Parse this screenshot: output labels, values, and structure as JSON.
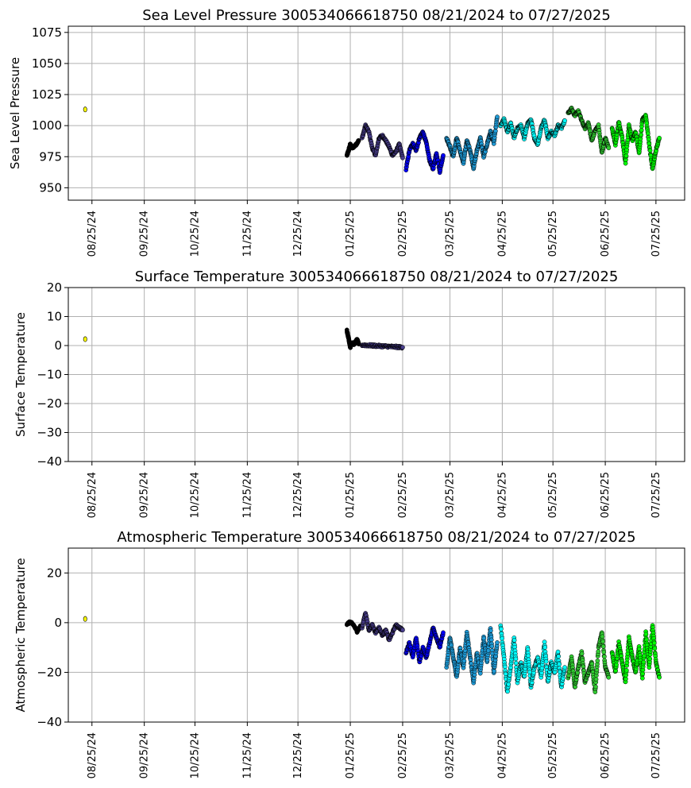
{
  "chart_data": [
    {
      "type": "scatter",
      "title": "Sea Level Pressure 300534066618750  08/21/2024 to 07/27/2025",
      "xlabel": "",
      "ylabel": "Sea Level Pressure",
      "ylim": [
        940,
        1080
      ],
      "yticks": [
        950,
        975,
        1000,
        1025,
        1050,
        1075
      ],
      "xlim": [
        "2024-08-11",
        "2025-08-11"
      ],
      "xticks": [
        "2024-08-25",
        "2024-09-25",
        "2024-10-25",
        "2024-11-25",
        "2024-12-25",
        "2025-01-25",
        "2025-02-25",
        "2025-03-25",
        "2025-04-25",
        "2025-05-25",
        "2025-06-25",
        "2025-07-25"
      ],
      "xtick_labels": [
        "08/25/24",
        "09/25/24",
        "10/25/24",
        "11/25/24",
        "12/25/24",
        "01/25/25",
        "02/25/25",
        "03/25/25",
        "04/25/25",
        "05/25/25",
        "06/25/25",
        "07/25/25"
      ],
      "grid": true,
      "series": [
        {
          "color": "#ffff00",
          "x": [
            "2024-08-21"
          ],
          "y": [
            1013
          ]
        },
        {
          "color": "#000000",
          "x": [
            "2025-01-23",
            "2025-01-24",
            "2025-01-25",
            "2025-01-26",
            "2025-01-28",
            "2025-01-30"
          ],
          "y": [
            976,
            980,
            985,
            982,
            984,
            988
          ]
        },
        {
          "color": "#483d8b",
          "x": [
            "2025-02-01",
            "2025-02-03",
            "2025-02-05",
            "2025-02-07",
            "2025-02-09",
            "2025-02-11",
            "2025-02-13",
            "2025-02-15",
            "2025-02-17",
            "2025-02-19",
            "2025-02-21",
            "2025-02-23",
            "2025-02-25"
          ],
          "y": [
            990,
            1000,
            995,
            982,
            976,
            990,
            992,
            988,
            983,
            976,
            979,
            985,
            974
          ]
        },
        {
          "color": "#0000ff",
          "x": [
            "2025-02-27",
            "2025-03-01",
            "2025-03-03",
            "2025-03-05",
            "2025-03-07",
            "2025-03-09",
            "2025-03-11",
            "2025-03-13",
            "2025-03-15",
            "2025-03-17",
            "2025-03-19",
            "2025-03-21"
          ],
          "y": [
            965,
            980,
            986,
            980,
            990,
            995,
            986,
            972,
            965,
            978,
            963,
            976
          ]
        },
        {
          "color": "#1e9ad6",
          "x": [
            "2025-03-23",
            "2025-03-25",
            "2025-03-27",
            "2025-03-29",
            "2025-03-31",
            "2025-04-02",
            "2025-04-04",
            "2025-04-06",
            "2025-04-08",
            "2025-04-10",
            "2025-04-12",
            "2025-04-14",
            "2025-04-16",
            "2025-04-18",
            "2025-04-20",
            "2025-04-22"
          ],
          "y": [
            990,
            983,
            975,
            990,
            980,
            970,
            988,
            980,
            966,
            980,
            990,
            975,
            985,
            995,
            986,
            1007
          ]
        },
        {
          "color": "#00ffff",
          "x": [
            "2025-04-24",
            "2025-04-26",
            "2025-04-28",
            "2025-04-30",
            "2025-05-02",
            "2025-05-04",
            "2025-05-06",
            "2025-05-08",
            "2025-05-10",
            "2025-05-12",
            "2025-05-14",
            "2025-05-16",
            "2025-05-18",
            "2025-05-20",
            "2025-05-22",
            "2025-05-24",
            "2025-05-26",
            "2025-05-28",
            "2025-05-30",
            "2025-06-01"
          ],
          "y": [
            1000,
            1005,
            995,
            1002,
            990,
            998,
            1000,
            990,
            1002,
            1005,
            990,
            985,
            998,
            1005,
            990,
            995,
            992,
            1000,
            998,
            1004
          ]
        },
        {
          "color": "#32cd32",
          "x": [
            "2025-06-03",
            "2025-06-05",
            "2025-06-07",
            "2025-06-09",
            "2025-06-11",
            "2025-06-13",
            "2025-06-15",
            "2025-06-17",
            "2025-06-19",
            "2025-06-21",
            "2025-06-23",
            "2025-06-25",
            "2025-06-27"
          ],
          "y": [
            1010,
            1014,
            1008,
            1012,
            1004,
            998,
            1002,
            988,
            996,
            1000,
            978,
            990,
            982
          ]
        },
        {
          "color": "#00ff00",
          "x": [
            "2025-06-29",
            "2025-07-01",
            "2025-07-03",
            "2025-07-05",
            "2025-07-07",
            "2025-07-09",
            "2025-07-11",
            "2025-07-13",
            "2025-07-15",
            "2025-07-17",
            "2025-07-19",
            "2025-07-21",
            "2025-07-23",
            "2025-07-25",
            "2025-07-27"
          ],
          "y": [
            998,
            985,
            1003,
            990,
            970,
            1000,
            988,
            995,
            978,
            1005,
            1008,
            985,
            965,
            980,
            990
          ]
        }
      ]
    },
    {
      "type": "scatter",
      "title": "Surface Temperature 300534066618750  08/21/2024 to 07/27/2025",
      "xlabel": "",
      "ylabel": "Surface Temperature",
      "ylim": [
        -40,
        20
      ],
      "yticks": [
        -40,
        -30,
        -20,
        -10,
        0,
        10,
        20
      ],
      "xlim": [
        "2024-08-11",
        "2025-08-11"
      ],
      "xticks": [
        "2024-08-25",
        "2024-09-25",
        "2024-10-25",
        "2024-11-25",
        "2024-12-25",
        "2025-01-25",
        "2025-02-25",
        "2025-03-25",
        "2025-04-25",
        "2025-05-25",
        "2025-06-25",
        "2025-07-25"
      ],
      "xtick_labels": [
        "08/25/24",
        "09/25/24",
        "10/25/24",
        "11/25/24",
        "12/25/24",
        "01/25/25",
        "02/25/25",
        "03/25/25",
        "04/25/25",
        "05/25/25",
        "06/25/25",
        "07/25/25"
      ],
      "grid": true,
      "series": [
        {
          "color": "#ffff00",
          "x": [
            "2024-08-21"
          ],
          "y": [
            2.2
          ]
        },
        {
          "color": "#000000",
          "x": [
            "2025-01-23",
            "2025-01-24",
            "2025-01-25",
            "2025-01-26",
            "2025-01-27",
            "2025-01-29",
            "2025-01-30"
          ],
          "y": [
            5.2,
            2.5,
            -0.5,
            1.2,
            0.4,
            2.0,
            0.5
          ]
        },
        {
          "color": "#483d8b",
          "x": [
            "2025-02-01",
            "2025-02-04",
            "2025-02-07",
            "2025-02-10",
            "2025-02-13",
            "2025-02-16",
            "2025-02-19",
            "2025-02-22",
            "2025-02-25"
          ],
          "y": [
            0.2,
            0.1,
            0.0,
            -0.1,
            -0.2,
            -0.3,
            -0.4,
            -0.5,
            -0.6
          ]
        }
      ]
    },
    {
      "type": "scatter",
      "title": "Atmospheric Temperature 300534066618750  08/21/2024 to 07/27/2025",
      "xlabel": "",
      "ylabel": "Atmospheric Temperature",
      "ylim": [
        -40,
        30
      ],
      "yticks": [
        -40,
        -20,
        0,
        20
      ],
      "xlim": [
        "2024-08-11",
        "2025-08-11"
      ],
      "xticks": [
        "2024-08-25",
        "2024-09-25",
        "2024-10-25",
        "2024-11-25",
        "2024-12-25",
        "2025-01-25",
        "2025-02-25",
        "2025-03-25",
        "2025-04-25",
        "2025-05-25",
        "2025-06-25",
        "2025-07-25"
      ],
      "xtick_labels": [
        "08/25/24",
        "09/25/24",
        "10/25/24",
        "11/25/24",
        "12/25/24",
        "01/25/25",
        "02/25/25",
        "03/25/25",
        "04/25/25",
        "05/25/25",
        "06/25/25",
        "07/25/25"
      ],
      "grid": true,
      "series": [
        {
          "color": "#ffff00",
          "x": [
            "2024-08-21"
          ],
          "y": [
            1.5
          ]
        },
        {
          "color": "#000000",
          "x": [
            "2025-01-23",
            "2025-01-25",
            "2025-01-27",
            "2025-01-29",
            "2025-01-31"
          ],
          "y": [
            -0.5,
            0.2,
            -1.0,
            -3.5,
            -1.5
          ]
        },
        {
          "color": "#483d8b",
          "x": [
            "2025-02-01",
            "2025-02-03",
            "2025-02-05",
            "2025-02-07",
            "2025-02-09",
            "2025-02-11",
            "2025-02-13",
            "2025-02-15",
            "2025-02-17",
            "2025-02-19",
            "2025-02-21",
            "2025-02-23",
            "2025-02-25"
          ],
          "y": [
            -2,
            4,
            -3,
            -1,
            -4,
            -2,
            -5,
            -3,
            -7,
            -4,
            -1,
            -2,
            -3
          ]
        },
        {
          "color": "#0000ff",
          "x": [
            "2025-02-27",
            "2025-03-01",
            "2025-03-03",
            "2025-03-05",
            "2025-03-07",
            "2025-03-09",
            "2025-03-11",
            "2025-03-13",
            "2025-03-15",
            "2025-03-17",
            "2025-03-19",
            "2025-03-21"
          ],
          "y": [
            -12,
            -8,
            -14,
            -6,
            -16,
            -10,
            -14,
            -8,
            -2,
            -6,
            -10,
            -4
          ]
        },
        {
          "color": "#1e9ad6",
          "x": [
            "2025-03-23",
            "2025-03-25",
            "2025-03-27",
            "2025-03-29",
            "2025-03-31",
            "2025-04-02",
            "2025-04-04",
            "2025-04-06",
            "2025-04-08",
            "2025-04-10",
            "2025-04-12",
            "2025-04-14",
            "2025-04-16",
            "2025-04-18",
            "2025-04-20",
            "2025-04-22"
          ],
          "y": [
            -18,
            -6,
            -14,
            -22,
            -10,
            -18,
            -4,
            -14,
            -24,
            -12,
            -20,
            -6,
            -16,
            -2,
            -20,
            -8
          ]
        },
        {
          "color": "#00ffff",
          "x": [
            "2025-04-24",
            "2025-04-26",
            "2025-04-28",
            "2025-04-30",
            "2025-05-02",
            "2025-05-04",
            "2025-05-06",
            "2025-05-08",
            "2025-05-10",
            "2025-05-12",
            "2025-05-14",
            "2025-05-16",
            "2025-05-18",
            "2025-05-20",
            "2025-05-22",
            "2025-05-24",
            "2025-05-26",
            "2025-05-28",
            "2025-05-30",
            "2025-06-01"
          ],
          "y": [
            -1,
            -14,
            -28,
            -18,
            -6,
            -24,
            -16,
            -22,
            -10,
            -26,
            -18,
            -14,
            -22,
            -8,
            -24,
            -16,
            -20,
            -12,
            -26,
            -18
          ]
        },
        {
          "color": "#32cd32",
          "x": [
            "2025-06-03",
            "2025-06-05",
            "2025-06-07",
            "2025-06-09",
            "2025-06-11",
            "2025-06-13",
            "2025-06-15",
            "2025-06-17",
            "2025-06-19",
            "2025-06-21",
            "2025-06-23",
            "2025-06-25",
            "2025-06-27"
          ],
          "y": [
            -22,
            -14,
            -26,
            -18,
            -12,
            -24,
            -20,
            -16,
            -28,
            -10,
            -4,
            -18,
            -22
          ]
        },
        {
          "color": "#00ff00",
          "x": [
            "2025-06-29",
            "2025-07-01",
            "2025-07-03",
            "2025-07-05",
            "2025-07-07",
            "2025-07-09",
            "2025-07-11",
            "2025-07-13",
            "2025-07-15",
            "2025-07-17",
            "2025-07-19",
            "2025-07-21",
            "2025-07-23",
            "2025-07-25",
            "2025-07-27"
          ],
          "y": [
            -12,
            -20,
            -8,
            -16,
            -24,
            -6,
            -14,
            -20,
            -10,
            -22,
            -4,
            -18,
            -1,
            -16,
            -22
          ]
        }
      ]
    }
  ]
}
